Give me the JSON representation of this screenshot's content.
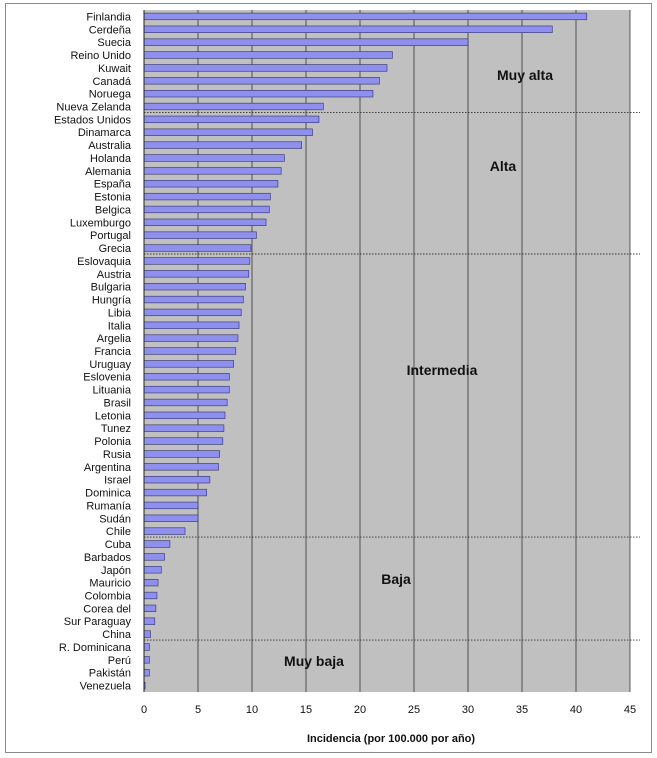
{
  "chart_data": {
    "type": "bar",
    "orientation": "horizontal",
    "xlabel": "Incidencia (por 100.000 por año)",
    "xlim": [
      0,
      45
    ],
    "xticks": [
      0,
      5,
      10,
      15,
      20,
      25,
      30,
      35,
      40,
      45
    ],
    "grid": true,
    "colors": {
      "bar": "#8f8fee",
      "bar_edge": "#30306a",
      "plot_bg": "#c0c0c0",
      "grid": "#333333"
    },
    "categories": [
      "Finlandia",
      "Cerdeña",
      "Suecia",
      "Reino Unido",
      "Kuwait",
      "Canadá",
      "Noruega",
      "Nueva Zelanda",
      "Estados Unidos",
      "Dinamarca",
      "Australia",
      "Holanda",
      "Alemania",
      "España",
      "Estonia",
      "Belgica",
      "Luxemburgo",
      "Portugal",
      "Grecia",
      "Eslovaquia",
      "Austria",
      "Bulgaria",
      "Hungría",
      "Libia",
      "Italia",
      "Argelia",
      "Francia",
      "Uruguay",
      "Eslovenia",
      "Lituania",
      "Brasil",
      "Letonia",
      "Tunez",
      "Polonia",
      "Rusia",
      "Argentina",
      "Israel",
      "Dominica",
      "Rumanía",
      "Sudán",
      "Chile",
      "Cuba",
      "Barbados",
      "Japón",
      "Mauricio",
      "Colombia",
      "Corea del",
      "Sur Paraguay",
      "China",
      "R. Dominicana",
      "Perú",
      "Pakistán",
      "Venezuela"
    ],
    "values": [
      41,
      37.8,
      30,
      23,
      22.5,
      21.8,
      21.2,
      16.6,
      16.2,
      15.6,
      14.6,
      13,
      12.7,
      12.4,
      11.7,
      11.6,
      11.3,
      10.4,
      9.9,
      9.8,
      9.7,
      9.4,
      9.2,
      9.0,
      8.8,
      8.7,
      8.5,
      8.3,
      7.9,
      7.9,
      7.7,
      7.5,
      7.4,
      7.3,
      7.0,
      6.9,
      6.1,
      5.8,
      5.0,
      5.0,
      3.8,
      2.4,
      1.9,
      1.6,
      1.3,
      1.2,
      1.1,
      1.0,
      0.6,
      0.5,
      0.5,
      0.5,
      0.1
    ],
    "zones": [
      {
        "label": "Muy alta",
        "last_index": 7
      },
      {
        "label": "Alta",
        "last_index": 18
      },
      {
        "label": "Intermedia",
        "last_index": 40
      },
      {
        "label": "Baja",
        "last_index": 48
      },
      {
        "label": "Muy baja",
        "last_index": 52
      }
    ]
  }
}
